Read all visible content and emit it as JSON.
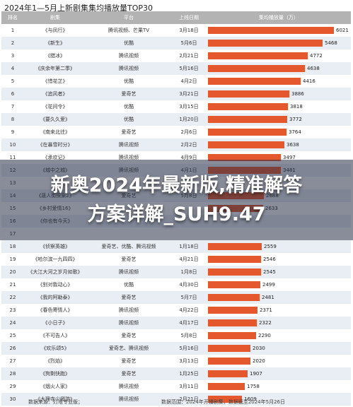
{
  "chart_data": {
    "type": "table",
    "title": "2024年1—5月上新剧集集均播放量TOP30",
    "columns": [
      "排名",
      "剧集",
      "平台",
      "上线日期",
      "集均播放量（万）"
    ],
    "rows": [
      {
        "rank": "1",
        "name": "《与凤行》",
        "platform": "腾讯视频、芒果TV",
        "date": "3月18日",
        "value": 6021
      },
      {
        "rank": "2",
        "name": "《新生》",
        "platform": "优酷",
        "date": "5月6日",
        "value": 5468
      },
      {
        "rank": "3",
        "name": "《猎冰》",
        "platform": "腾讯视频",
        "date": "2月21日",
        "value": 4772
      },
      {
        "rank": "4",
        "name": "《庆余年第二季》",
        "platform": "腾讯视频",
        "date": "5月16日",
        "value": 4638
      },
      {
        "rank": "5",
        "name": "《惜花芷》",
        "platform": "优酷",
        "date": "4月2日",
        "value": 4416
      },
      {
        "rank": "6",
        "name": "《追风者》",
        "platform": "爱奇艺",
        "date": "3月21日",
        "value": 3886
      },
      {
        "rank": "7",
        "name": "《花间令》",
        "platform": "优酷",
        "date": "3月15日",
        "value": 3818
      },
      {
        "rank": "8",
        "name": "《要久久爱》",
        "platform": "优酷",
        "date": "1月20日",
        "value": 3772
      },
      {
        "rank": "9",
        "name": "《南来北往》",
        "platform": "爱奇艺",
        "date": "2月6日",
        "value": 3764
      },
      {
        "rank": "10",
        "name": "《在暴雪时分》",
        "platform": "腾讯视频",
        "date": "2月2日",
        "value": 3638
      },
      {
        "rank": "11",
        "name": "《承欢记》",
        "platform": "腾讯视频",
        "date": "4月9日",
        "value": 3497
      },
      {
        "rank": "12",
        "name": "《城中之城》",
        "platform": "腾讯视频",
        "date": "4月1日",
        "value": 3481
      },
      {
        "rank": "13",
        "name": "",
        "platform": "",
        "date": "",
        "value": null
      },
      {
        "rank": "14",
        "name": "《唐人街探案2》",
        "platform": "爱奇艺",
        "date": "5月8日",
        "value": 2688
      },
      {
        "rank": "15",
        "name": "《乡村爱情16》",
        "platform": "",
        "date": "",
        "value": 2633
      },
      {
        "rank": "16",
        "name": "《你也有今天》",
        "platform": "",
        "date": "",
        "value": null
      },
      {
        "rank": "17",
        "name": "",
        "platform": "",
        "date": "",
        "value": null
      },
      {
        "rank": "18",
        "name": "《侦察英雄》",
        "platform": "爱奇艺、优酷、腾讯视频",
        "date": "1月18日",
        "value": 2559
      },
      {
        "rank": "19",
        "name": "《哈尔滨一九四四》",
        "platform": "爱奇艺",
        "date": "4月21日",
        "value": 2546
      },
      {
        "rank": "20",
        "name": "《大江大河之岁月如歌》",
        "platform": "腾讯视频",
        "date": "1月8日",
        "value": 2545
      },
      {
        "rank": "21",
        "name": "《别对我动心》",
        "platform": "优酷",
        "date": "4月30日",
        "value": 2499
      },
      {
        "rank": "22",
        "name": "《我的阿勒泰》",
        "platform": "爱奇艺",
        "date": "5月7日",
        "value": 2481
      },
      {
        "rank": "23",
        "name": "《春色寄情人》",
        "platform": "腾讯视频",
        "date": "4月22日",
        "value": 2371
      },
      {
        "rank": "24",
        "name": "《小日子》",
        "platform": "腾讯视频",
        "date": "4月17日",
        "value": 2322
      },
      {
        "rank": "25",
        "name": "《不可告人》",
        "platform": "爱奇艺",
        "date": "5月8日",
        "value": 2290
      },
      {
        "rank": "26",
        "name": "《欢乐颂5》",
        "platform": "爱奇艺、腾讯视频",
        "date": "5月16日",
        "value": 2030
      },
      {
        "rank": "27",
        "name": "《烈焰》",
        "platform": "爱奇艺",
        "date": "3月13日",
        "value": 2020
      },
      {
        "rank": "28",
        "name": "《狗剩快跑》",
        "platform": "爱奇艺",
        "date": "1月25日",
        "value": 1907
      },
      {
        "rank": "29",
        "name": "《烟火人家》",
        "platform": "腾讯视频",
        "date": "3月11日",
        "value": 1758
      },
      {
        "rank": "30",
        "name": "《大理寺少卿游》",
        "platform": "腾讯视频",
        "date": "2月21日",
        "value": 1609
      }
    ],
    "max_value": 6021,
    "bar_color": "#e5572c"
  },
  "footer": {
    "source": "数据来源：灯塔专业版；",
    "scope": "数据范围：2024年开播剧集，数据截至2024年5月26日"
  },
  "overlay": {
    "line1": "新奥2024年最新版,精准解答",
    "line2": "方案详解_SUH9.47"
  }
}
